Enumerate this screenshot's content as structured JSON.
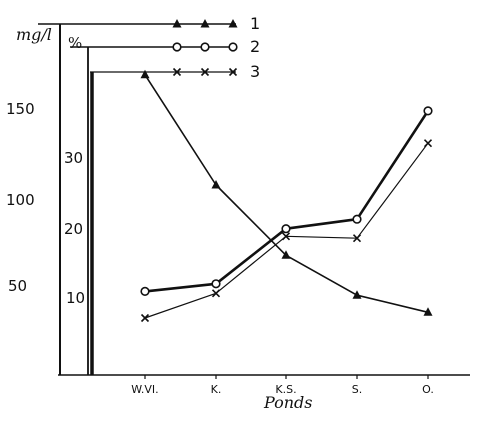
{
  "chart_data": {
    "type": "line",
    "xlabel": "Ponds",
    "categories": [
      "W.VI.",
      "K.",
      "K.S.",
      "S.",
      "O."
    ],
    "axes": [
      {
        "label": "mg/l",
        "ticks": [
          "50",
          "100",
          "150"
        ],
        "tick_values": [
          50,
          100,
          150
        ],
        "range": [
          0,
          200
        ]
      },
      {
        "label": "%",
        "ticks": [
          "10",
          "20",
          "30"
        ],
        "tick_values": [
          10,
          20,
          30
        ],
        "range": [
          0,
          40
        ]
      }
    ],
    "series": [
      {
        "name": "1",
        "axis": "mg/l",
        "marker": "triangle",
        "line": "medium",
        "values": [
          158,
          100,
          63,
          42,
          33
        ]
      },
      {
        "name": "2",
        "axis": "mg/l",
        "marker": "circle",
        "line": "thick",
        "values": [
          44,
          48,
          77,
          82,
          139
        ]
      },
      {
        "name": "3",
        "axis": "mg/l",
        "marker": "cross",
        "line": "thin",
        "values": [
          30,
          43,
          73,
          72,
          122
        ]
      }
    ],
    "grid": false,
    "legend": "top"
  }
}
